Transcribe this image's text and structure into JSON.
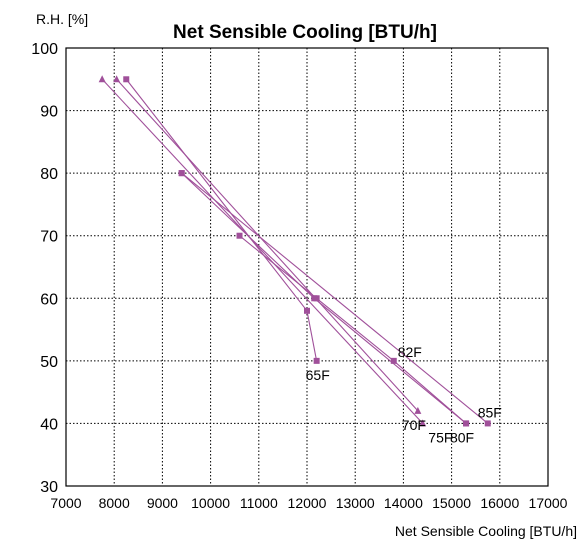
{
  "chart_data": {
    "type": "scatter",
    "title": "Net Sensible Cooling [BTU/h]",
    "ylabel": "R.H. [%]",
    "xlabel": "Net Sensible Cooling [BTU/h]",
    "xlim": [
      7000,
      17000
    ],
    "ylim": [
      30,
      100
    ],
    "x_ticks": [
      7000,
      8000,
      9000,
      10000,
      11000,
      12000,
      13000,
      14000,
      15000,
      16000,
      17000
    ],
    "y_ticks": [
      30,
      40,
      50,
      60,
      70,
      80,
      90,
      100
    ],
    "grid": true,
    "line_color": "#a0509a",
    "marker_color": "#a0509a",
    "series": [
      {
        "name": "65F",
        "marker": "square",
        "x": [
          8250,
          12000,
          12200
        ],
        "y": [
          95,
          58,
          50
        ]
      },
      {
        "name": "70F",
        "marker": "triangle",
        "x": [
          8050,
          14300
        ],
        "y": [
          95,
          42
        ]
      },
      {
        "name": "75F",
        "marker": "triangle",
        "x": [
          7750,
          14400
        ],
        "y": [
          95,
          40
        ]
      },
      {
        "name": "80F",
        "marker": "square",
        "x": [
          9400,
          12150,
          15300
        ],
        "y": [
          80,
          60,
          40
        ]
      },
      {
        "name": "82F",
        "marker": "square",
        "x": [
          10600,
          12200,
          13800,
          15300
        ],
        "y": [
          70,
          60,
          50,
          40
        ]
      },
      {
        "name": "85F",
        "marker": "square",
        "x": [
          9400,
          15750
        ],
        "y": [
          80,
          40
        ]
      }
    ],
    "labels": [
      {
        "text": "65F",
        "x": 12200,
        "y": 50,
        "anchor": "below-start"
      },
      {
        "text": "70F",
        "x": 14300,
        "y": 42,
        "anchor": "below"
      },
      {
        "text": "75F",
        "x": 14850,
        "y": 40,
        "anchor": "below"
      },
      {
        "text": "80F",
        "x": 15300,
        "y": 40,
        "anchor": "below"
      },
      {
        "text": "82F",
        "x": 13800,
        "y": 50,
        "anchor": "above-right"
      },
      {
        "text": "85F",
        "x": 15750,
        "y": 40,
        "anchor": "above"
      }
    ]
  }
}
